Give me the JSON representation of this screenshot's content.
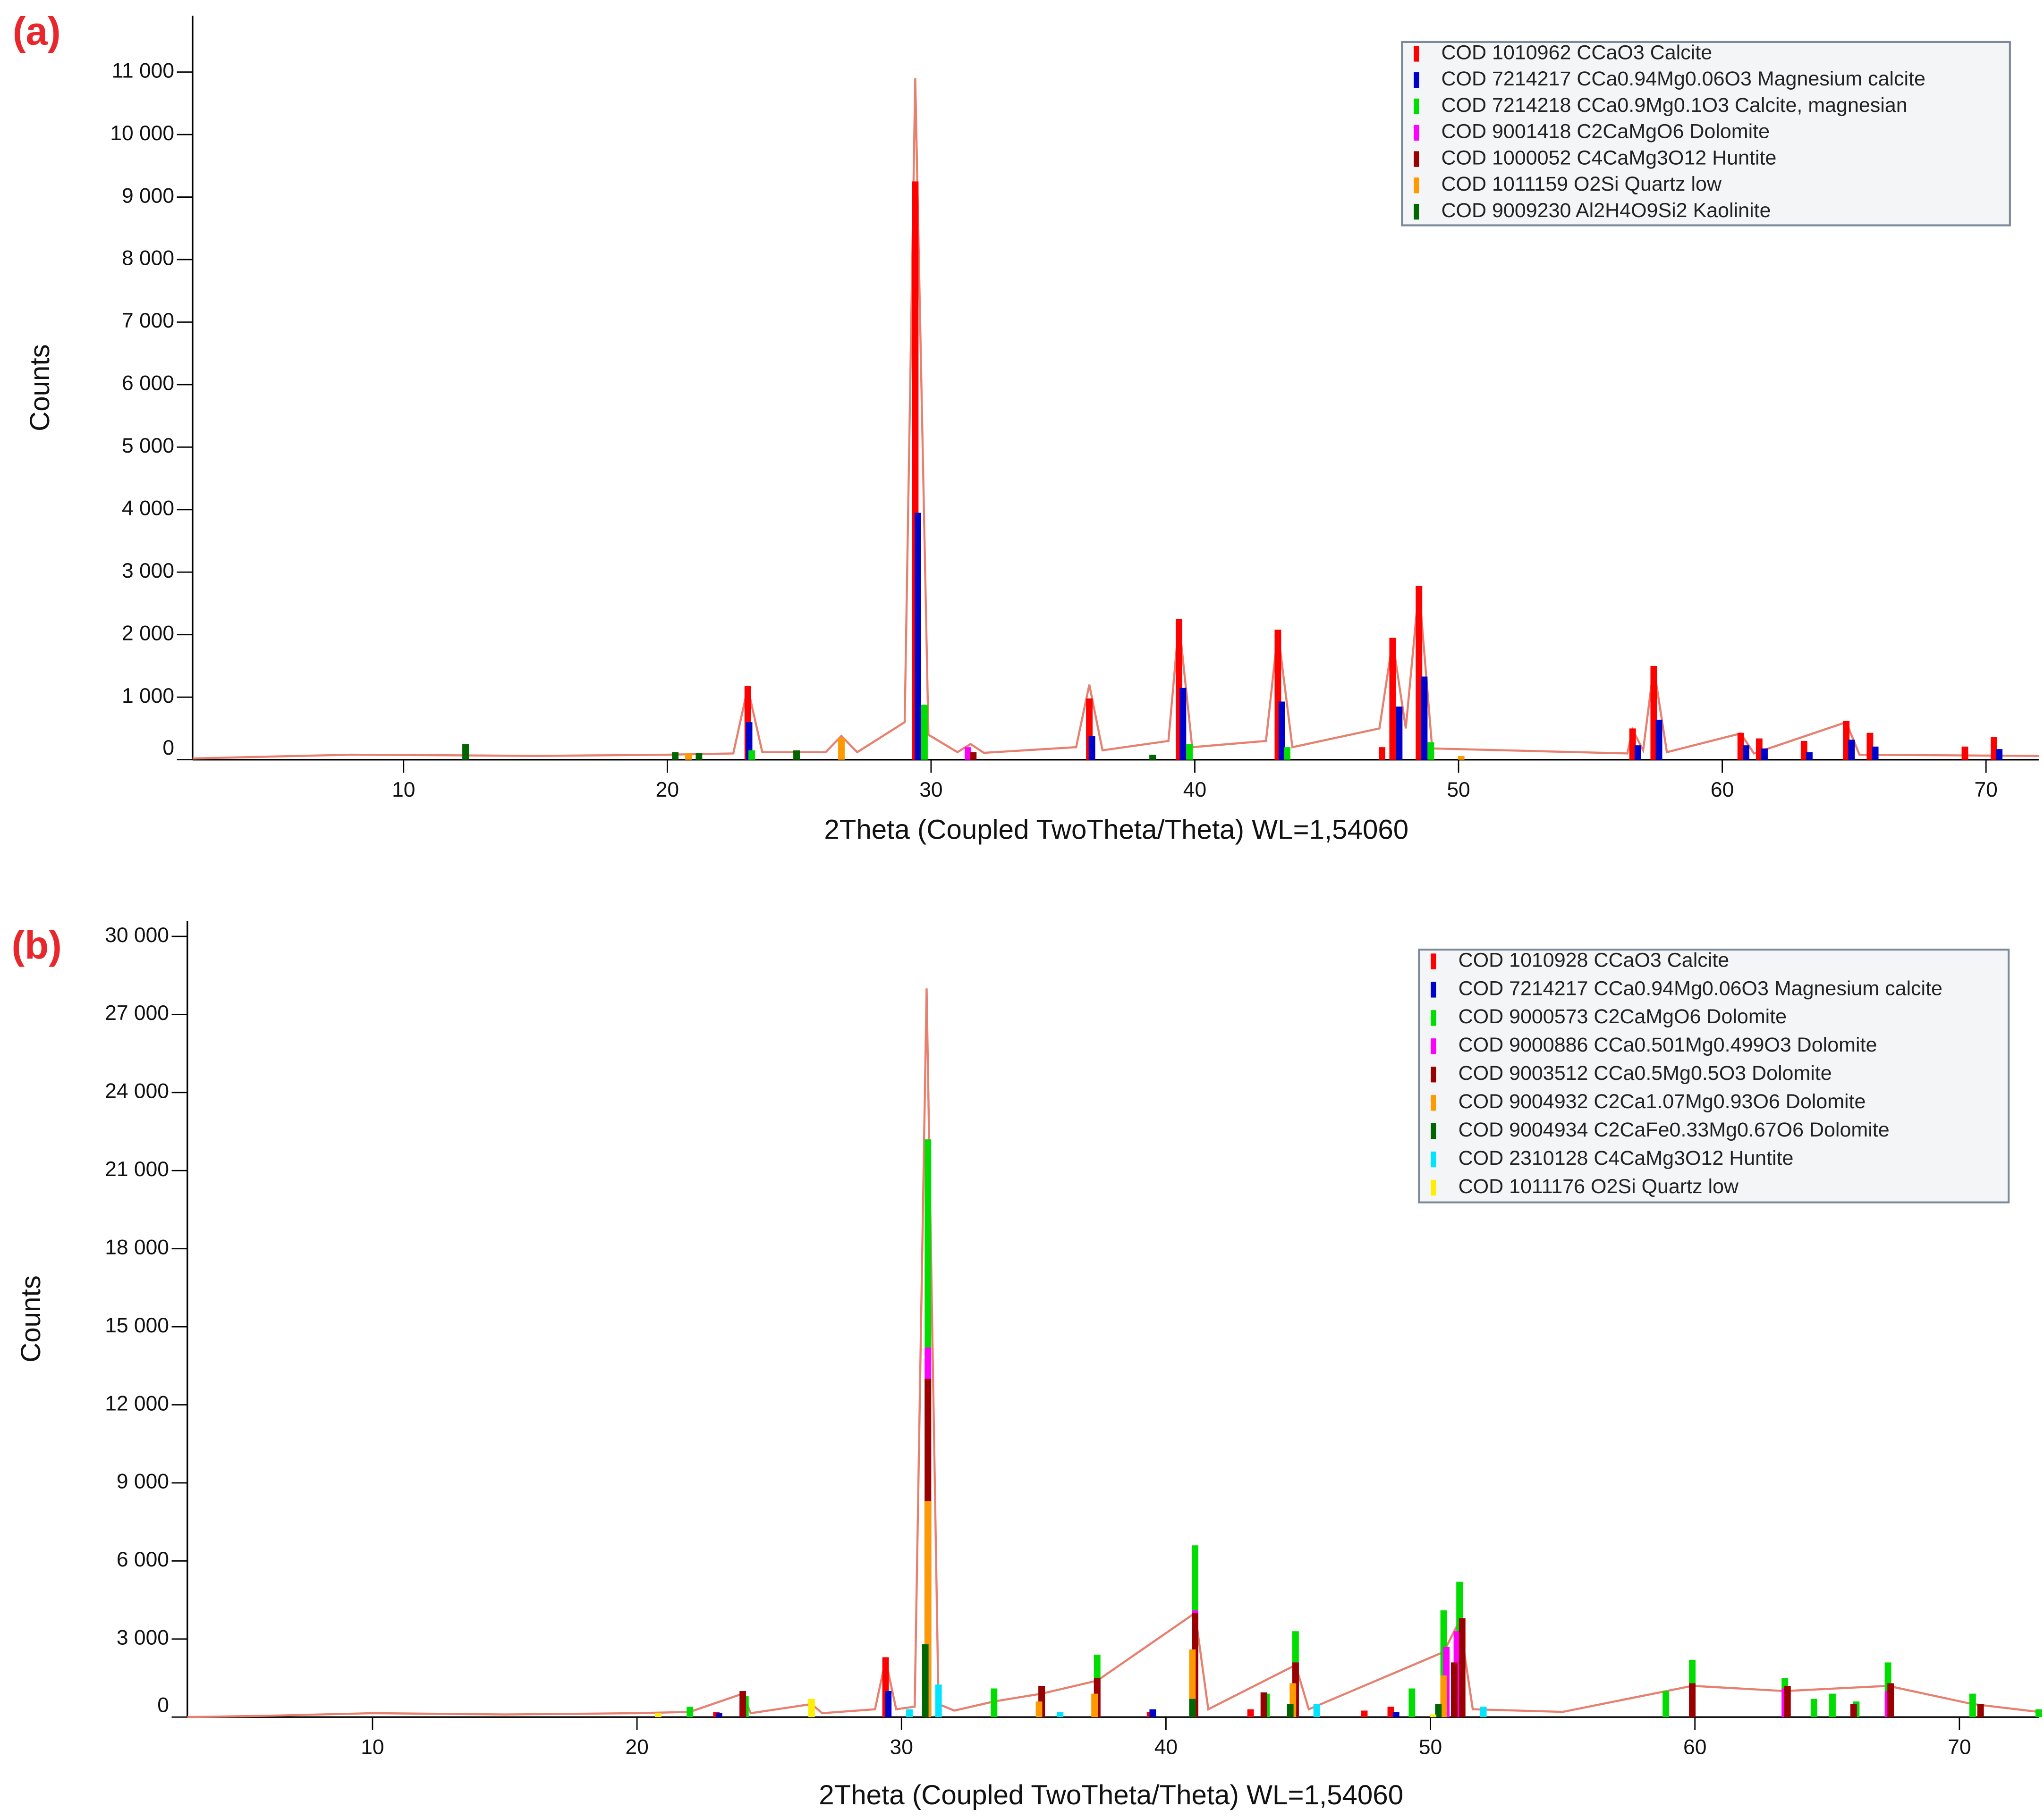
{
  "chart_data": [
    {
      "type": "stick",
      "label": "(a)",
      "xlabel": "2Theta (Coupled TwoTheta/Theta) WL=1,54060",
      "ylabel": "Counts",
      "xlim": [
        2,
        72
      ],
      "ylim": [
        0,
        11900
      ],
      "xticks": [
        10,
        20,
        30,
        40,
        50,
        60,
        70
      ],
      "yticks": [
        0,
        {
          "value": 1000,
          "label": "1 000"
        },
        {
          "value": 2000,
          "label": "2 000"
        },
        {
          "value": 3000,
          "label": "3 000"
        },
        {
          "value": 4000,
          "label": "4 000"
        },
        {
          "value": 5000,
          "label": "5 000"
        },
        {
          "value": 6000,
          "label": "6 000"
        },
        {
          "value": 7000,
          "label": "7 000"
        },
        {
          "value": 8000,
          "label": "8 000"
        },
        {
          "value": 9000,
          "label": "9 000"
        },
        {
          "value": 10000,
          "label": "10 000"
        },
        {
          "value": 11000,
          "label": "11 000"
        }
      ],
      "line": {
        "color": "#e8806f",
        "x": [
          2,
          5,
          8,
          12,
          15,
          20,
          22.5,
          23.05,
          23.6,
          26,
          26.6,
          27.2,
          29,
          29.4,
          29.9,
          31,
          31.5,
          32,
          35.5,
          36,
          36.5,
          39,
          39.4,
          39.9,
          42.7,
          43.15,
          43.7,
          47,
          47.5,
          48,
          48.5,
          49,
          56.4,
          56.6,
          57,
          57.4,
          57.9,
          60.7,
          61.2,
          64.7,
          65.2,
          72
        ],
        "values": [
          20,
          50,
          80,
          70,
          60,
          80,
          100,
          1150,
          120,
          120,
          380,
          120,
          600,
          10900,
          400,
          120,
          250,
          110,
          200,
          1200,
          150,
          300,
          2200,
          200,
          300,
          2050,
          200,
          500,
          1900,
          500,
          2750,
          180,
          100,
          480,
          150,
          1480,
          120,
          420,
          100,
          600,
          80,
          60
        ]
      },
      "series": [
        {
          "name": "COD 1010962 CCaO3 Calcite",
          "color": "#ff0000",
          "x": [
            23.05,
            29.4,
            36.0,
            39.4,
            43.15,
            47.1,
            47.5,
            48.5,
            56.6,
            57.4,
            60.7,
            61.4,
            63.1,
            64.7,
            65.6,
            69.2,
            70.3
          ],
          "values": [
            1180,
            9250,
            980,
            2250,
            2080,
            200,
            1950,
            2780,
            500,
            1500,
            430,
            340,
            300,
            620,
            430,
            210,
            360
          ]
        },
        {
          "name": "COD 7214217 CCa0.94Mg0.06O3 Magnesium calcite",
          "color": "#0000cc",
          "x": [
            23.1,
            29.5,
            36.1,
            39.55,
            43.3,
            47.75,
            48.7,
            56.8,
            57.6,
            60.9,
            61.6,
            63.3,
            64.9,
            65.8,
            70.5
          ],
          "values": [
            600,
            3950,
            380,
            1150,
            930,
            850,
            1330,
            230,
            640,
            230,
            180,
            120,
            320,
            210,
            170
          ]
        },
        {
          "name": "COD 7214218 CCa0.9Mg0.1O3 Calcite, magnesian",
          "color": "#00dd00",
          "x": [
            23.2,
            29.75,
            39.8,
            43.5,
            48.95
          ],
          "values": [
            150,
            880,
            250,
            200,
            280
          ]
        },
        {
          "name": "COD 9001418 C2CaMgO6 Dolomite",
          "color": "#ff00ff",
          "x": [
            31.4
          ],
          "values": [
            200
          ]
        },
        {
          "name": "COD 1000052 C4CaMg3O12 Huntite",
          "color": "#990000",
          "x": [
            31.6
          ],
          "values": [
            120
          ]
        },
        {
          "name": "COD 1011159 O2Si Quartz low",
          "color": "#ff9900",
          "x": [
            20.8,
            26.6,
            50.1
          ],
          "values": [
            100,
            350,
            60
          ]
        },
        {
          "name": "COD 9009230 Al2H4O9Si2 Kaolinite",
          "color": "#006600",
          "x": [
            12.35,
            20.3,
            21.2,
            24.9,
            38.4
          ],
          "values": [
            250,
            120,
            110,
            150,
            80
          ]
        }
      ]
    },
    {
      "type": "stick",
      "label": "(b)",
      "xlabel": "2Theta (Coupled TwoTheta/Theta) WL=1,54060",
      "ylabel": "Counts",
      "xlim": [
        3,
        73
      ],
      "ylim": [
        0,
        30600
      ],
      "xticks": [
        10,
        20,
        30,
        40,
        50,
        60,
        70
      ],
      "yticks": [
        0,
        {
          "value": 3000,
          "label": "3 000"
        },
        {
          "value": 6000,
          "label": "6 000"
        },
        {
          "value": 9000,
          "label": "9 000"
        },
        {
          "value": 12000,
          "label": "12 000"
        },
        {
          "value": 15000,
          "label": "15 000"
        },
        {
          "value": 18000,
          "label": "18 000"
        },
        {
          "value": 21000,
          "label": "21 000"
        },
        {
          "value": 24000,
          "label": "24 000"
        },
        {
          "value": 27000,
          "label": "27 000"
        },
        {
          "value": 30000,
          "label": "30 000"
        }
      ],
      "line": {
        "color": "#e8806f",
        "x": [
          3,
          6,
          10,
          15,
          20,
          22,
          24,
          24.3,
          26.6,
          27,
          29,
          29.4,
          29.8,
          30.5,
          30.95,
          31.4,
          32,
          33.5,
          35.3,
          37.4,
          41.1,
          41.6,
          44.9,
          45.4,
          50.5,
          51.1,
          51.6,
          55,
          59.9,
          63.4,
          67.3,
          70.5,
          73
        ],
        "values": [
          0,
          50,
          150,
          100,
          150,
          200,
          900,
          150,
          500,
          150,
          300,
          2200,
          300,
          400,
          28000,
          500,
          250,
          600,
          900,
          1400,
          4000,
          300,
          2000,
          300,
          2500,
          3700,
          300,
          200,
          1200,
          1000,
          1200,
          500,
          200
        ]
      },
      "series": [
        {
          "name": "COD 1010928 CCaO3 Calcite",
          "color": "#ff0000",
          "x": [
            23.0,
            29.4,
            39.4,
            43.2,
            47.5,
            48.5
          ],
          "values": [
            200,
            2300,
            200,
            300,
            250,
            400
          ]
        },
        {
          "name": "COD 7214217 CCa0.94Mg0.06O3 Magnesium calcite",
          "color": "#0000cc",
          "x": [
            23.1,
            29.5,
            39.5,
            48.7
          ],
          "values": [
            150,
            1000,
            300,
            200
          ]
        },
        {
          "name": "COD 9000573 C2CaMgO6 Dolomite",
          "color": "#00dd00",
          "x": [
            22.0,
            24.1,
            31.0,
            33.5,
            35.3,
            37.4,
            41.1,
            43.8,
            44.9,
            49.3,
            50.5,
            51.1,
            58.9,
            59.9,
            63.4,
            64.5,
            65.2,
            66.1,
            67.3,
            70.5,
            73
          ],
          "values": [
            400,
            800,
            22200,
            1100,
            1200,
            2400,
            6600,
            900,
            3300,
            1100,
            4100,
            5200,
            1000,
            2200,
            1500,
            700,
            900,
            600,
            2100,
            900,
            300
          ]
        },
        {
          "name": "COD 9000886 CCa0.501Mg0.499O3 Dolomite",
          "color": "#ff00ff",
          "x": [
            24.0,
            31.0,
            37.4,
            41.1,
            44.9,
            50.6,
            51.0,
            59.9,
            63.4,
            67.3
          ],
          "values": [
            600,
            14200,
            1400,
            4100,
            2100,
            2700,
            3300,
            1300,
            1100,
            1000
          ]
        },
        {
          "name": "COD 9003512 CCa0.5Mg0.5O3 Dolomite",
          "color": "#990000",
          "x": [
            24.0,
            31.0,
            35.3,
            37.4,
            41.1,
            43.7,
            44.9,
            50.9,
            51.2,
            59.9,
            63.5,
            66.0,
            67.4,
            70.8
          ],
          "values": [
            1000,
            13000,
            1200,
            1500,
            4000,
            950,
            2100,
            2100,
            3800,
            1300,
            1200,
            500,
            1300,
            500
          ]
        },
        {
          "name": "COD 9004932 C2Ca1.07Mg0.93O6 Dolomite",
          "color": "#ff9900",
          "x": [
            31.0,
            35.2,
            37.3,
            41.0,
            44.8,
            50.5
          ],
          "values": [
            8300,
            600,
            900,
            2600,
            1300,
            1600
          ]
        },
        {
          "name": "COD 9004934 C2CaFe0.33Mg0.67O6 Dolomite",
          "color": "#006600",
          "x": [
            30.9,
            41.0,
            44.7,
            50.3
          ],
          "values": [
            2800,
            700,
            500,
            500
          ]
        },
        {
          "name": "COD 2310128 C4CaMg3O12 Huntite",
          "color": "#00e5ff",
          "x": [
            30.3,
            31.4,
            36.0,
            45.7,
            52.0
          ],
          "values": [
            300,
            1250,
            200,
            500,
            400
          ]
        },
        {
          "name": "COD 1011176 O2Si Quartz low",
          "color": "#ffee00",
          "x": [
            20.8,
            26.6,
            50.1
          ],
          "values": [
            150,
            700,
            100
          ]
        }
      ]
    }
  ]
}
